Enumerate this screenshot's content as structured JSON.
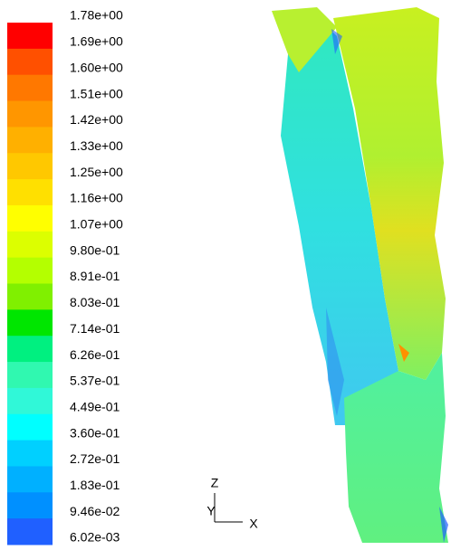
{
  "colorbar": {
    "labels": [
      "1.78e+00",
      "1.69e+00",
      "1.60e+00",
      "1.51e+00",
      "1.42e+00",
      "1.33e+00",
      "1.25e+00",
      "1.16e+00",
      "1.07e+00",
      "9.80e-01",
      "8.91e-01",
      "8.03e-01",
      "7.14e-01",
      "6.26e-01",
      "5.37e-01",
      "4.49e-01",
      "3.60e-01",
      "2.72e-01",
      "1.83e-01",
      "9.46e-02",
      "6.02e-03"
    ],
    "colors": [
      "#ff0000",
      "#ff5000",
      "#ff7800",
      "#ff9600",
      "#ffb000",
      "#ffc800",
      "#ffe000",
      "#ffff00",
      "#dcff00",
      "#b4ff00",
      "#80f000",
      "#00e600",
      "#00f080",
      "#30f8b0",
      "#30f8d8",
      "#00ffff",
      "#00d0ff",
      "#00b0ff",
      "#0090ff",
      "#2060ff"
    ]
  },
  "axes": {
    "z": "Z",
    "y": "Y",
    "x": "X"
  }
}
